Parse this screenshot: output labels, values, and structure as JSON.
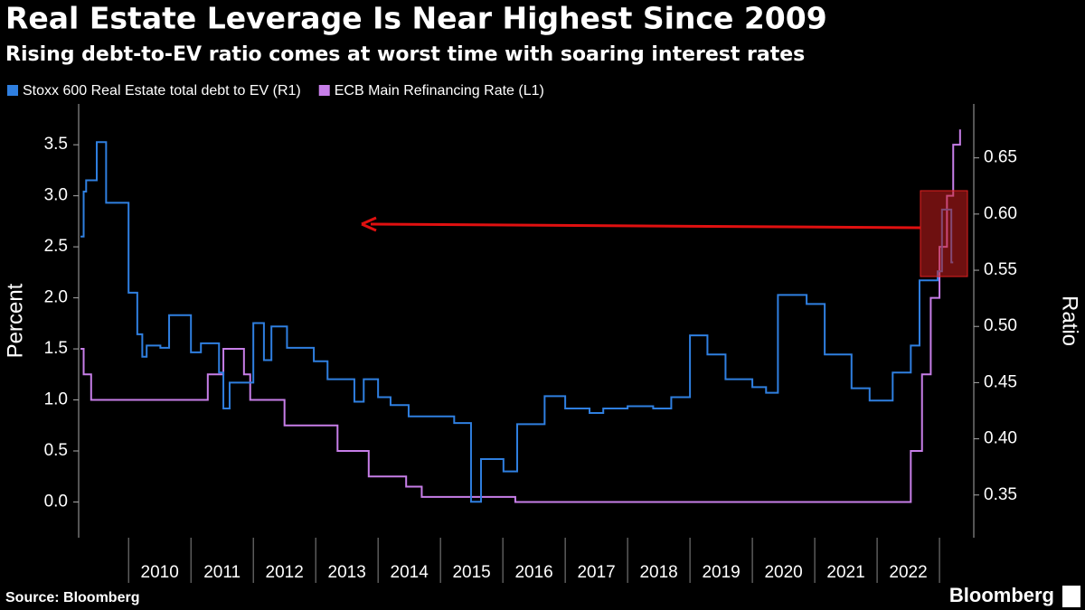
{
  "chart_data": {
    "type": "line",
    "title": "Real Estate Leverage Is Near Highest Since 2009",
    "subtitle": "Rising debt-to-EV ratio comes at worst time with soaring interest rates",
    "y_label": "Percent",
    "y2_label": "Ratio",
    "source": "Source: Bloomberg",
    "brand": "Bloomberg",
    "xlim": [
      2009.2,
      2023.55
    ],
    "xticks": [
      2010,
      2011,
      2012,
      2013,
      2014,
      2015,
      2016,
      2017,
      2018,
      2019,
      2020,
      2021,
      2022
    ],
    "ylim": [
      -0.35,
      3.9
    ],
    "yticks": [
      {
        "value": 0,
        "label": "0.0"
      },
      0.5,
      {
        "value": 1,
        "label": "1.0"
      },
      1.5,
      {
        "value": 2,
        "label": "2.0"
      },
      2.5,
      {
        "value": 3,
        "label": "3.0"
      },
      3.5
    ],
    "y2lim": [
      0.312,
      0.698
    ],
    "y2ticks": [
      0.35,
      {
        "value": 0.4,
        "label": "0.40"
      },
      0.45,
      {
        "value": 0.5,
        "label": "0.50"
      },
      0.55,
      {
        "value": 0.6,
        "label": "0.60"
      },
      0.65
    ],
    "series": [
      {
        "name": "Stoxx 600 Real Estate total debt to EV (R1)",
        "color": "#2f7fe0",
        "axis": "y2",
        "x": [
          2009.23,
          2009.28,
          2009.32,
          2009.49,
          2009.64,
          2010.0,
          2010.14,
          2010.22,
          2010.29,
          2010.51,
          2010.65,
          2011.0,
          2011.16,
          2011.45,
          2011.52,
          2011.62,
          2012.0,
          2012.17,
          2012.29,
          2012.54,
          2012.97,
          2013.19,
          2013.62,
          2013.77,
          2014.0,
          2014.2,
          2014.49,
          2015.22,
          2015.49,
          2015.65,
          2016.01,
          2016.23,
          2016.67,
          2017.0,
          2017.39,
          2017.61,
          2018.0,
          2018.41,
          2018.7,
          2019.0,
          2019.28,
          2019.57,
          2020.0,
          2020.22,
          2020.41,
          2020.87,
          2021.16,
          2021.59,
          2021.88,
          2022.25,
          2022.54,
          2022.68,
          2022.97,
          2023.04,
          2023.19,
          2023.22
        ],
        "values": [
          0.58,
          0.62,
          0.63,
          0.664,
          0.61,
          0.53,
          0.493,
          0.473,
          0.483,
          0.481,
          0.51,
          0.477,
          0.485,
          0.459,
          0.427,
          0.45,
          0.503,
          0.47,
          0.5,
          0.481,
          0.469,
          0.453,
          0.433,
          0.453,
          0.437,
          0.43,
          0.42,
          0.414,
          0.344,
          0.382,
          0.371,
          0.413,
          0.438,
          0.427,
          0.423,
          0.427,
          0.429,
          0.427,
          0.437,
          0.492,
          0.475,
          0.453,
          0.446,
          0.441,
          0.528,
          0.52,
          0.475,
          0.445,
          0.434,
          0.459,
          0.483,
          0.541,
          0.549,
          0.604,
          0.557,
          0.557
        ]
      },
      {
        "name": "ECB Main Refinancing Rate (L1)",
        "color": "#c77ee8",
        "x": [
          2009.23,
          2009.28,
          2009.4,
          2011.27,
          2011.52,
          2011.85,
          2011.95,
          2012.5,
          2013.35,
          2013.85,
          2014.45,
          2014.7,
          2016.2,
          2022.54,
          2022.72,
          2022.86,
          2023.0,
          2023.12,
          2023.22,
          2023.33
        ],
        "values": [
          1.5,
          1.25,
          1.0,
          1.25,
          1.5,
          1.25,
          1.0,
          0.75,
          0.5,
          0.25,
          0.15,
          0.05,
          0.0,
          0.5,
          1.25,
          2.0,
          2.5,
          3.0,
          3.5,
          3.65
        ]
      }
    ]
  }
}
